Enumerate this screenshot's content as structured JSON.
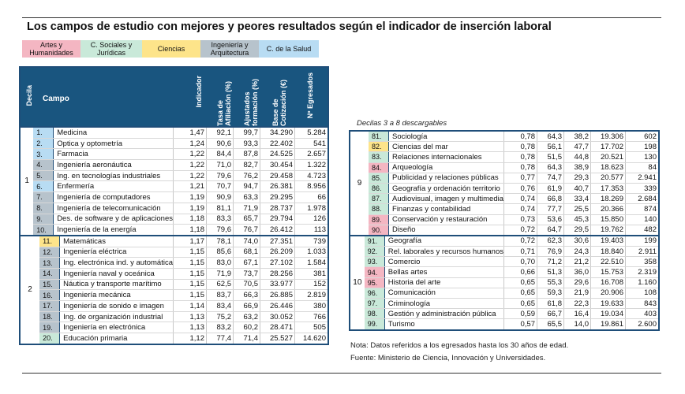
{
  "title": "Los campos de estudio con mejores y peores resultados según el indicador de inserción laboral",
  "legend": [
    {
      "label": "Artes y Humanidades",
      "color": "#f4b6c2"
    },
    {
      "label": "C. Sociales y Jurídicas",
      "color": "#c9e9d9"
    },
    {
      "label": "Ciencias",
      "color": "#fde48a"
    },
    {
      "label": "Ingeniería y Arquitectura",
      "color": "#b7c3cc"
    },
    {
      "label": "C. de la Salud",
      "color": "#b8dcf3"
    }
  ],
  "headers": {
    "decila": "Decila",
    "campo": "Campo",
    "indicador": "Indicador",
    "afiliacion": "Tasa de Afiliación (%)",
    "ajustados": "Ajustados formación (%)",
    "base": "Base de Cotización (€)",
    "egresados": "Nº Egresados"
  },
  "left_groups": [
    {
      "decila": "1",
      "rows": [
        {
          "n": "1.",
          "campo": "Medicina",
          "ind": "1,47",
          "af": "92,1",
          "aj": "99,7",
          "base": "34.290",
          "eg": "5.284",
          "color": "#b8dcf3"
        },
        {
          "n": "2.",
          "campo": "Optica y optometría",
          "ind": "1,24",
          "af": "90,6",
          "aj": "93,3",
          "base": "22.402",
          "eg": "541",
          "color": "#b8dcf3"
        },
        {
          "n": "3.",
          "campo": "Farmacia",
          "ind": "1,22",
          "af": "84,4",
          "aj": "87,8",
          "base": "24.525",
          "eg": "2.657",
          "color": "#b8dcf3"
        },
        {
          "n": "4.",
          "campo": "Ingeniería aeronáutica",
          "ind": "1,22",
          "af": "71,0",
          "aj": "82,7",
          "base": "30.454",
          "eg": "1.322",
          "color": "#b7c3cc"
        },
        {
          "n": "5.",
          "campo": "Ing. en tecnologías industriales",
          "ind": "1,22",
          "af": "79,6",
          "aj": "76,2",
          "base": "29.458",
          "eg": "4.723",
          "color": "#b7c3cc"
        },
        {
          "n": "6.",
          "campo": "Enfermería",
          "ind": "1,21",
          "af": "70,7",
          "aj": "94,7",
          "base": "26.381",
          "eg": "8.956",
          "color": "#b8dcf3"
        },
        {
          "n": "7.",
          "campo": "Ingeniería de computadores",
          "ind": "1,19",
          "af": "90,9",
          "aj": "63,3",
          "base": "29.295",
          "eg": "66",
          "color": "#b7c3cc"
        },
        {
          "n": "8.",
          "campo": "Ingeniería de telecomunicación",
          "ind": "1,19",
          "af": "81,1",
          "aj": "71,9",
          "base": "28.737",
          "eg": "1.978",
          "color": "#b7c3cc"
        },
        {
          "n": "9.",
          "campo": "Des. de software y de aplicaciones",
          "ind": "1,18",
          "af": "83,3",
          "aj": "65,7",
          "base": "29.794",
          "eg": "126",
          "color": "#b7c3cc"
        },
        {
          "n": "10.",
          "campo": "Ingeniería de la energía",
          "ind": "1,18",
          "af": "79,6",
          "aj": "76,7",
          "base": "26.412",
          "eg": "113",
          "color": "#b7c3cc"
        }
      ]
    },
    {
      "decila": "2",
      "rows": [
        {
          "n": "11.",
          "campo": "Matemáticas",
          "ind": "1,17",
          "af": "78,1",
          "aj": "74,0",
          "base": "27.351",
          "eg": "739",
          "color": "#fde48a"
        },
        {
          "n": "12.",
          "campo": "Ingeniería eléctrica",
          "ind": "1,15",
          "af": "85,6",
          "aj": "68,1",
          "base": "26.209",
          "eg": "1.033",
          "color": "#b7c3cc"
        },
        {
          "n": "13.",
          "campo": "Ing. electrónica ind. y automática",
          "ind": "1,15",
          "af": "83,0",
          "aj": "67,1",
          "base": "27.102",
          "eg": "1.584",
          "color": "#b7c3cc"
        },
        {
          "n": "14.",
          "campo": "Ingeniería naval y oceánica",
          "ind": "1,15",
          "af": "71,9",
          "aj": "73,7",
          "base": "28.256",
          "eg": "381",
          "color": "#b7c3cc"
        },
        {
          "n": "15.",
          "campo": "Náutica y transporte marítimo",
          "ind": "1,15",
          "af": "62,5",
          "aj": "70,5",
          "base": "33.977",
          "eg": "152",
          "color": "#b7c3cc"
        },
        {
          "n": "16.",
          "campo": "Ingeniería mecánica",
          "ind": "1,15",
          "af": "83,7",
          "aj": "66,3",
          "base": "26.885",
          "eg": "2.819",
          "color": "#b7c3cc"
        },
        {
          "n": "17.",
          "campo": "Ingeniería de sonido e imagen",
          "ind": "1,14",
          "af": "83,4",
          "aj": "66,9",
          "base": "26.446",
          "eg": "380",
          "color": "#b7c3cc"
        },
        {
          "n": "18.",
          "campo": "Ing. de organización industrial",
          "ind": "1,13",
          "af": "75,2",
          "aj": "63,2",
          "base": "30.052",
          "eg": "766",
          "color": "#b7c3cc"
        },
        {
          "n": "19.",
          "campo": "Ingeniería en electrónica",
          "ind": "1,13",
          "af": "83,2",
          "aj": "60,2",
          "base": "28.471",
          "eg": "505",
          "color": "#b7c3cc"
        },
        {
          "n": "20.",
          "campo": "Educación primaria",
          "ind": "1,12",
          "af": "77,4",
          "aj": "71,4",
          "base": "25.527",
          "eg": "14.620",
          "color": "#c9e9d9"
        }
      ]
    }
  ],
  "right_label": "Decilas 3 a 8 descargables",
  "right_groups": [
    {
      "decila": "9",
      "rows": [
        {
          "n": "81.",
          "campo": "Sociología",
          "ind": "0,78",
          "af": "64,3",
          "aj": "38,2",
          "base": "19.306",
          "eg": "602",
          "color": "#c9e9d9"
        },
        {
          "n": "82.",
          "campo": "Ciencias del mar",
          "ind": "0,78",
          "af": "56,1",
          "aj": "47,7",
          "base": "17.702",
          "eg": "198",
          "color": "#fde48a"
        },
        {
          "n": "83.",
          "campo": "Relaciones internacionales",
          "ind": "0,78",
          "af": "51,5",
          "aj": "44,8",
          "base": "20.521",
          "eg": "130",
          "color": "#c9e9d9"
        },
        {
          "n": "84.",
          "campo": "Arqueología",
          "ind": "0,78",
          "af": "64,3",
          "aj": "38,9",
          "base": "18.623",
          "eg": "84",
          "color": "#f4b6c2"
        },
        {
          "n": "85.",
          "campo": "Publicidad y relaciones públicas",
          "ind": "0,77",
          "af": "74,7",
          "aj": "29,3",
          "base": "20.577",
          "eg": "2.941",
          "color": "#c9e9d9"
        },
        {
          "n": "86.",
          "campo": "Geografía y ordenación territorio",
          "ind": "0,76",
          "af": "61,9",
          "aj": "40,7",
          "base": "17.353",
          "eg": "339",
          "color": "#c9e9d9"
        },
        {
          "n": "87.",
          "campo": "Audiovisual, imagen y multimedia",
          "ind": "0,74",
          "af": "66,8",
          "aj": "33,4",
          "base": "18.269",
          "eg": "2.684",
          "color": "#c9e9d9"
        },
        {
          "n": "88.",
          "campo": "Finanzas y contabilidad",
          "ind": "0,74",
          "af": "77,7",
          "aj": "25,5",
          "base": "20.366",
          "eg": "874",
          "color": "#c9e9d9"
        },
        {
          "n": "89.",
          "campo": "Conservación y restauración",
          "ind": "0,73",
          "af": "53,6",
          "aj": "45,3",
          "base": "15.850",
          "eg": "140",
          "color": "#f4b6c2"
        },
        {
          "n": "90.",
          "campo": "Diseño",
          "ind": "0,72",
          "af": "64,7",
          "aj": "29,5",
          "base": "19.762",
          "eg": "482",
          "color": "#f4b6c2"
        }
      ]
    },
    {
      "decila": "10",
      "rows": [
        {
          "n": "91.",
          "campo": "Geografía",
          "ind": "0,72",
          "af": "62,3",
          "aj": "30,6",
          "base": "19.403",
          "eg": "199",
          "color": "#c9e9d9"
        },
        {
          "n": "92.",
          "campo": "Rel. laborales y recursos humanos",
          "ind": "0,71",
          "af": "76,9",
          "aj": "24,3",
          "base": "18.840",
          "eg": "2.911",
          "color": "#c9e9d9"
        },
        {
          "n": "93.",
          "campo": "Comercio",
          "ind": "0,70",
          "af": "71,2",
          "aj": "21,2",
          "base": "22.510",
          "eg": "358",
          "color": "#c9e9d9"
        },
        {
          "n": "94.",
          "campo": "Bellas artes",
          "ind": "0,66",
          "af": "51,3",
          "aj": "36,0",
          "base": "15.753",
          "eg": "2.319",
          "color": "#f4b6c2"
        },
        {
          "n": "95.",
          "campo": "Historia del arte",
          "ind": "0,65",
          "af": "55,3",
          "aj": "29,6",
          "base": "16.708",
          "eg": "1.160",
          "color": "#f4b6c2"
        },
        {
          "n": "96.",
          "campo": "Comunicación",
          "ind": "0,65",
          "af": "59,3",
          "aj": "21,9",
          "base": "20.906",
          "eg": "108",
          "color": "#c9e9d9"
        },
        {
          "n": "97.",
          "campo": "Criminología",
          "ind": "0,65",
          "af": "61,8",
          "aj": "22,3",
          "base": "19.633",
          "eg": "843",
          "color": "#c9e9d9"
        },
        {
          "n": "98.",
          "campo": "Gestión y administración pública",
          "ind": "0,59",
          "af": "66,7",
          "aj": "16,4",
          "base": "19.034",
          "eg": "403",
          "color": "#c9e9d9"
        },
        {
          "n": "99.",
          "campo": "Turismo",
          "ind": "0,57",
          "af": "65,5",
          "aj": "14,0",
          "base": "19.861",
          "eg": "2.600",
          "color": "#c9e9d9"
        }
      ]
    }
  ],
  "note": "Nota: Datos referidos a los egresados hasta los 30 años de edad.",
  "source": "Fuente: Ministerio de Ciencia, Innovación y Universidades."
}
